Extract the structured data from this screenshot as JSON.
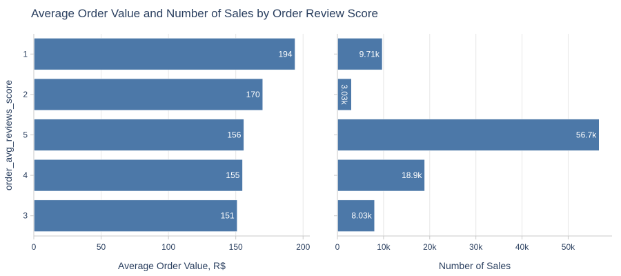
{
  "chart_data": {
    "type": "bar",
    "orientation": "horizontal",
    "title": "Average Order Value and Number of Sales by Order Review Score",
    "ylabel": "order_avg_reviews_score",
    "categories": [
      "1",
      "2",
      "5",
      "4",
      "3"
    ],
    "bar_color": "#4c78a8",
    "grid": true,
    "panels": [
      {
        "xlabel": "Average Order Value, R$",
        "xlim": [
          0,
          205
        ],
        "xticks": [
          0,
          50,
          100,
          150,
          200
        ],
        "xtick_labels": [
          "0",
          "50",
          "100",
          "150",
          "200"
        ],
        "values": [
          194,
          170,
          156,
          155,
          151
        ],
        "value_labels": [
          "194",
          "170",
          "156",
          "155",
          "151"
        ]
      },
      {
        "xlabel": "Number of Sales",
        "xlim": [
          0,
          59500
        ],
        "xticks": [
          0,
          10000,
          20000,
          30000,
          40000,
          50000
        ],
        "xtick_labels": [
          "0",
          "10k",
          "20k",
          "30k",
          "40k",
          "50k"
        ],
        "values": [
          9710,
          3030,
          56700,
          18900,
          8030
        ],
        "value_labels": [
          "9.71k",
          "3.03k",
          "56.7k",
          "18.9k",
          "8.03k"
        ]
      }
    ]
  }
}
